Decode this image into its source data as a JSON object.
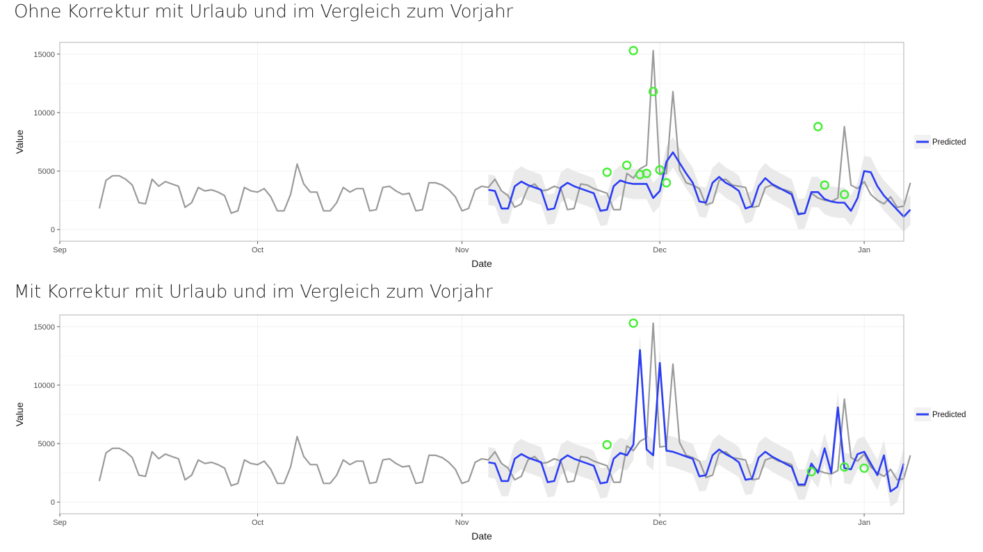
{
  "panels": [
    {
      "title": "Ohne Korrektur mit Urlaub und im Vergleich zum Vorjahr"
    },
    {
      "title": "Mit Korrektur mit Urlaub und im Vergleich zum Vorjahr"
    }
  ],
  "colors": {
    "actual": "#9a9a9a",
    "predicted": "#2a3cf5",
    "band": "#e6e6e6",
    "anomaly": "#44ee33",
    "panel_border": "#bdbdbd",
    "grid": "#f0f0f0"
  },
  "chart_data": [
    {
      "type": "line",
      "title": "Ohne Korrektur mit Urlaub und im Vergleich zum Vorjahr",
      "xlabel": "Date",
      "ylabel": "Value",
      "x_type": "date",
      "xlim": [
        "2015-09-01",
        "2016-01-07"
      ],
      "ylim": [
        -1000,
        16000
      ],
      "xticks": [
        "Sep",
        "Oct",
        "Nov",
        "Dec",
        "Jan"
      ],
      "xtick_dates": [
        "2015-09-01",
        "2015-10-01",
        "2015-11-01",
        "2015-12-01",
        "2016-01-01"
      ],
      "yticks": [
        0,
        5000,
        10000,
        15000
      ],
      "legend": {
        "position": "right",
        "entries": [
          "Predicted"
        ]
      },
      "grid": true,
      "series": [
        {
          "role": "actual",
          "start_date": "2015-09-07",
          "values": [
            1800,
            4200,
            4600,
            4600,
            4300,
            3800,
            2300,
            2200,
            4300,
            3700,
            4100,
            3900,
            3700,
            1900,
            2300,
            3600,
            3300,
            3400,
            3200,
            2900,
            1400,
            1600,
            3600,
            3300,
            3200,
            3500,
            2800,
            1600,
            1600,
            3000,
            5600,
            3900,
            3200,
            3200,
            1600,
            1600,
            2300,
            3600,
            3200,
            3500,
            3500,
            1600,
            1700,
            3600,
            3700,
            3300,
            3000,
            3100,
            1600,
            1700,
            4000,
            4000,
            3800,
            3400,
            2800,
            1600,
            1800,
            3400,
            3700,
            3600,
            4300,
            3300,
            2900,
            1900,
            2200,
            3600,
            3900,
            3300,
            3400,
            3700,
            3500,
            1700,
            1800,
            3900,
            3800,
            3500,
            3300,
            3100,
            1700,
            1700,
            4800,
            4400,
            5200,
            5500,
            15300,
            4700,
            4800,
            11800,
            5100,
            4000,
            3800,
            3500,
            2100,
            2300,
            4200,
            4300,
            3800,
            3700,
            3600,
            1900,
            2000,
            3600,
            3800,
            3500,
            3400,
            3200,
            1400,
            1400,
            3100,
            2700,
            2500,
            2400,
            2700,
            8800,
            3800,
            3500,
            4100,
            3000,
            2500,
            2200,
            2800,
            1900,
            2000,
            4000
          ]
        },
        {
          "name": "Predicted",
          "role": "predicted",
          "start_date": "2015-11-05",
          "values": [
            3400,
            3300,
            1800,
            1800,
            3700,
            4100,
            3800,
            3600,
            3400,
            1700,
            1800,
            3600,
            4000,
            3700,
            3500,
            3300,
            3100,
            1600,
            1700,
            3700,
            4200,
            4000,
            3900,
            3900,
            3900,
            2700,
            3300,
            5800,
            6600,
            5700,
            4800,
            4000,
            2400,
            2300,
            4000,
            4500,
            4000,
            3700,
            3300,
            1800,
            2000,
            3700,
            4400,
            3900,
            3600,
            3300,
            3000,
            1300,
            1400,
            3200,
            3200,
            2600,
            2400,
            2300,
            2300,
            1600,
            2700,
            5000,
            4900,
            3700,
            2900,
            2300,
            1700,
            1100,
            1700
          ],
          "band_width": 1300
        }
      ],
      "anomalies": [
        {
          "date": "2015-11-23",
          "value": 4900
        },
        {
          "date": "2015-11-26",
          "value": 5500
        },
        {
          "date": "2015-11-27",
          "value": 15300
        },
        {
          "date": "2015-11-28",
          "value": 4700
        },
        {
          "date": "2015-11-29",
          "value": 4800
        },
        {
          "date": "2015-11-30",
          "value": 11800
        },
        {
          "date": "2015-12-01",
          "value": 5100
        },
        {
          "date": "2015-12-02",
          "value": 4000
        },
        {
          "date": "2015-12-25",
          "value": 8800
        },
        {
          "date": "2015-12-26",
          "value": 3800
        },
        {
          "date": "2015-12-29",
          "value": 3000
        }
      ]
    },
    {
      "type": "line",
      "title": "Mit Korrektur mit Urlaub und im Vergleich zum Vorjahr",
      "xlabel": "Date",
      "ylabel": "Value",
      "x_type": "date",
      "xlim": [
        "2015-09-01",
        "2016-01-07"
      ],
      "ylim": [
        -1000,
        16000
      ],
      "xticks": [
        "Sep",
        "Oct",
        "Nov",
        "Dec",
        "Jan"
      ],
      "xtick_dates": [
        "2015-09-01",
        "2015-10-01",
        "2015-11-01",
        "2015-12-01",
        "2016-01-01"
      ],
      "yticks": [
        0,
        5000,
        10000,
        15000
      ],
      "legend": {
        "position": "right",
        "entries": [
          "Predicted"
        ]
      },
      "grid": true,
      "series": [
        {
          "role": "actual",
          "start_date": "2015-09-07",
          "values": [
            1800,
            4200,
            4600,
            4600,
            4300,
            3800,
            2300,
            2200,
            4300,
            3700,
            4100,
            3900,
            3700,
            1900,
            2300,
            3600,
            3300,
            3400,
            3200,
            2900,
            1400,
            1600,
            3600,
            3300,
            3200,
            3500,
            2800,
            1600,
            1600,
            3000,
            5600,
            3900,
            3200,
            3200,
            1600,
            1600,
            2300,
            3600,
            3200,
            3500,
            3500,
            1600,
            1700,
            3600,
            3700,
            3300,
            3000,
            3100,
            1600,
            1700,
            4000,
            4000,
            3800,
            3400,
            2800,
            1600,
            1800,
            3400,
            3700,
            3600,
            4300,
            3300,
            2900,
            1900,
            2200,
            3600,
            3900,
            3300,
            3400,
            3700,
            3500,
            1700,
            1800,
            3900,
            3800,
            3500,
            3300,
            3100,
            1700,
            1700,
            4800,
            4400,
            5200,
            5500,
            15300,
            4700,
            4800,
            11800,
            5100,
            4000,
            3800,
            3500,
            2100,
            2300,
            4200,
            4300,
            3800,
            3700,
            3600,
            1900,
            2000,
            3600,
            3800,
            3500,
            3400,
            3200,
            1400,
            1400,
            3100,
            2700,
            2500,
            2400,
            2700,
            8800,
            3800,
            3500,
            4100,
            3000,
            2500,
            2200,
            2800,
            1900,
            2000,
            4000
          ]
        },
        {
          "name": "Predicted",
          "role": "predicted",
          "start_date": "2015-11-05",
          "values": [
            3400,
            3300,
            1800,
            1800,
            3700,
            4100,
            3800,
            3600,
            3400,
            1700,
            1800,
            3600,
            4000,
            3700,
            3500,
            3300,
            3100,
            1600,
            1700,
            3700,
            4200,
            4000,
            4900,
            13000,
            4500,
            4000,
            11900,
            4400,
            4300,
            4100,
            3900,
            3700,
            2200,
            2300,
            4000,
            4500,
            4100,
            3800,
            3400,
            1900,
            2000,
            3800,
            4300,
            3900,
            3600,
            3300,
            3000,
            1500,
            1500,
            3300,
            2500,
            4600,
            2500,
            8100,
            2900,
            2800,
            4100,
            4300,
            3300,
            2300,
            4000,
            900,
            1300,
            3300
          ],
          "band_width": 1300
        }
      ],
      "anomalies": [
        {
          "date": "2015-11-23",
          "value": 4900
        },
        {
          "date": "2015-11-27",
          "value": 15300
        },
        {
          "date": "2015-12-24",
          "value": 2600
        },
        {
          "date": "2015-12-29",
          "value": 3000
        },
        {
          "date": "2016-01-01",
          "value": 2900
        }
      ]
    }
  ]
}
